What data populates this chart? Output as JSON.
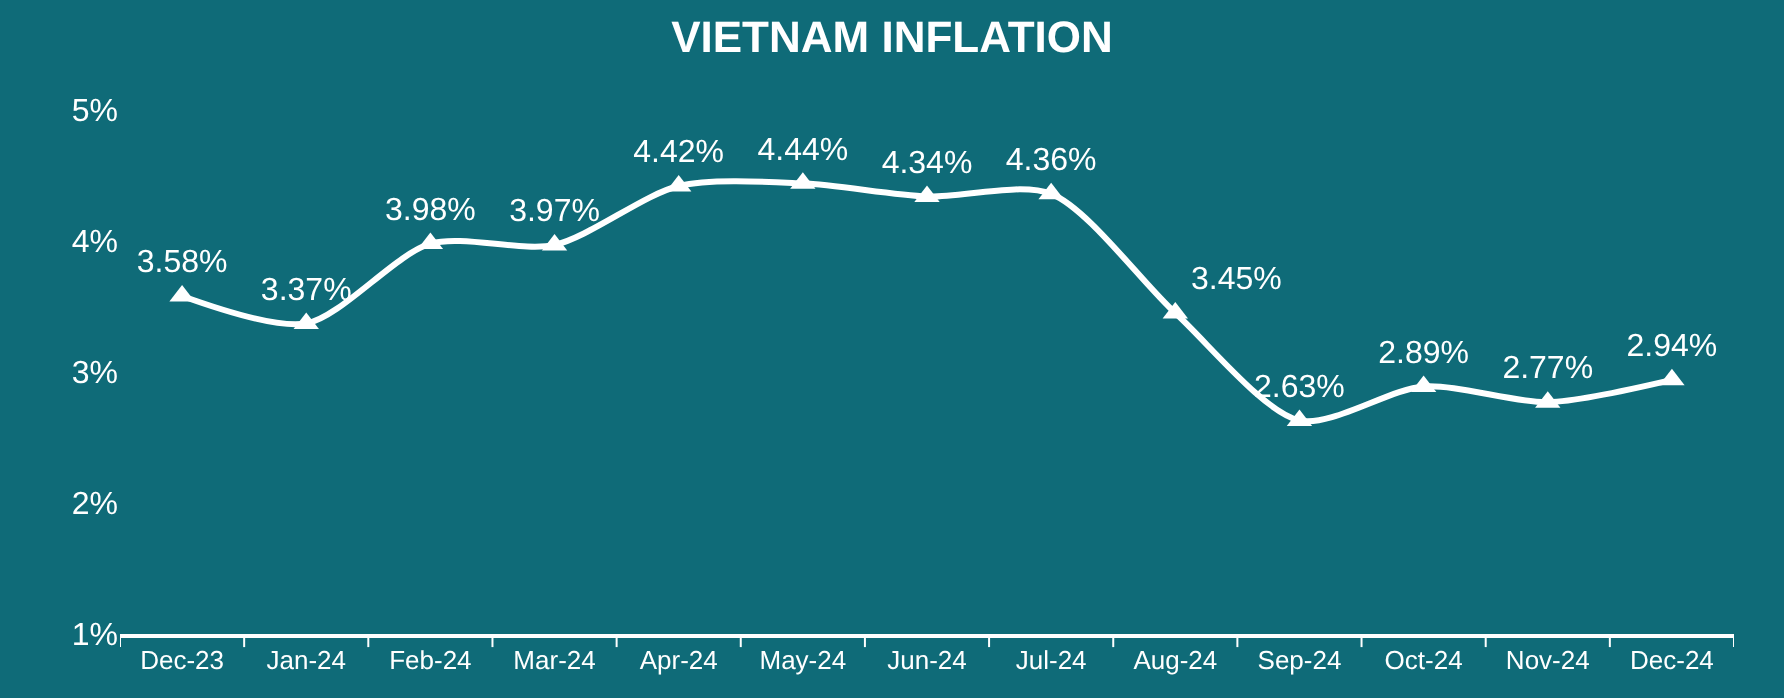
{
  "chart_data": {
    "type": "line",
    "title": "VIETNAM INFLATION",
    "categories": [
      "Dec-23",
      "Jan-24",
      "Feb-24",
      "Mar-24",
      "Apr-24",
      "May-24",
      "Jun-24",
      "Jul-24",
      "Aug-24",
      "Sep-24",
      "Oct-24",
      "Nov-24",
      "Dec-24"
    ],
    "series": [
      {
        "color": "#ffffff",
        "values": [
          3.58,
          3.37,
          3.98,
          3.97,
          4.42,
          4.44,
          4.34,
          4.36,
          3.45,
          2.63,
          2.89,
          2.77,
          2.94
        ],
        "value_labels": [
          "3.58%",
          "3.37%",
          "3.98%",
          "3.97%",
          "4.42%",
          "4.44%",
          "4.34%",
          "4.36%",
          "3.45%",
          "2.63%",
          "2.89%",
          "2.77%",
          "2.94%"
        ]
      }
    ],
    "ylim": [
      1,
      5
    ],
    "yticks": [
      {
        "value": 1,
        "label": "1%"
      },
      {
        "value": 2,
        "label": "2%"
      },
      {
        "value": 3,
        "label": "3%"
      },
      {
        "value": 4,
        "label": "4%"
      },
      {
        "value": 5,
        "label": "5%"
      }
    ],
    "grid": false,
    "legend": false,
    "marker": "triangle",
    "line_style": "solid"
  }
}
